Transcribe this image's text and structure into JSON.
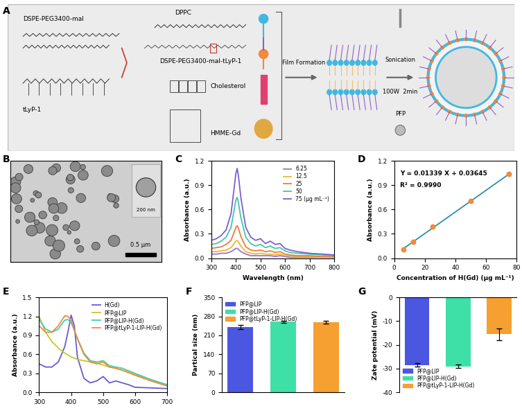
{
  "diagram": {
    "panel": "A",
    "labels": {
      "peg_mal": "DSPE-PEG3400-mal",
      "peptide": "tLyP-1",
      "dppc": "DPPC",
      "conjugate": "DSPE-PEG3400-mal-tLyP-1",
      "cholesterol": "Cholesterol",
      "hmme": "HMME-Gd",
      "step1": "Film Formation",
      "step2": "Sonication",
      "step2_conditions": "100W  2min",
      "gas": "PFP"
    }
  },
  "image": {
    "panel": "B",
    "scale_bar": "0.5 μm",
    "inset_scale_bar": "200 nm"
  },
  "chart_data": [
    {
      "panel": "C",
      "type": "line",
      "xlabel": "Wavelength (nm)",
      "ylabel": "Absorbance (a.u.)",
      "x": [
        300,
        320,
        340,
        360,
        380,
        390,
        400,
        405,
        410,
        420,
        440,
        460,
        480,
        500,
        520,
        540,
        560,
        580,
        600,
        620,
        650,
        700,
        750,
        800
      ],
      "xlim": [
        300,
        800
      ],
      "xticks": [
        300,
        400,
        500,
        600,
        700,
        800
      ],
      "ylim": [
        0.0,
        1.2
      ],
      "yticks": [
        0.0,
        0.3,
        0.6,
        0.9,
        1.2
      ],
      "legend": "upper right",
      "series": [
        {
          "name": "6.25",
          "color": "#9b72d8",
          "values": [
            0.05,
            0.05,
            0.06,
            0.06,
            0.08,
            0.1,
            0.12,
            0.12,
            0.11,
            0.08,
            0.05,
            0.03,
            0.03,
            0.03,
            0.03,
            0.03,
            0.02,
            0.03,
            0.02,
            0.01,
            0.01,
            0.01,
            0.01,
            0.01
          ]
        },
        {
          "name": "12.5",
          "color": "#e8b830",
          "values": [
            0.08,
            0.08,
            0.09,
            0.1,
            0.13,
            0.17,
            0.21,
            0.22,
            0.2,
            0.15,
            0.08,
            0.06,
            0.05,
            0.06,
            0.05,
            0.05,
            0.04,
            0.05,
            0.03,
            0.03,
            0.02,
            0.02,
            0.01,
            0.01
          ]
        },
        {
          "name": "25",
          "color": "#f07a3c",
          "values": [
            0.12,
            0.13,
            0.14,
            0.17,
            0.22,
            0.3,
            0.38,
            0.4,
            0.37,
            0.27,
            0.14,
            0.1,
            0.09,
            0.1,
            0.08,
            0.09,
            0.07,
            0.08,
            0.05,
            0.04,
            0.03,
            0.03,
            0.02,
            0.02
          ]
        },
        {
          "name": "50",
          "color": "#3ec9a7",
          "values": [
            0.17,
            0.18,
            0.21,
            0.26,
            0.38,
            0.55,
            0.72,
            0.75,
            0.69,
            0.5,
            0.26,
            0.18,
            0.15,
            0.17,
            0.13,
            0.15,
            0.12,
            0.13,
            0.09,
            0.07,
            0.06,
            0.05,
            0.04,
            0.03
          ]
        },
        {
          "name": "75 (μg mL⁻¹)",
          "color": "#7a5fd0",
          "values": [
            0.22,
            0.24,
            0.28,
            0.35,
            0.55,
            0.8,
            1.05,
            1.11,
            1.02,
            0.75,
            0.38,
            0.26,
            0.22,
            0.24,
            0.18,
            0.21,
            0.17,
            0.18,
            0.12,
            0.1,
            0.08,
            0.06,
            0.05,
            0.04
          ]
        }
      ]
    },
    {
      "panel": "D",
      "type": "scatter",
      "xlabel": "Concentration of H(Gd) (μg mL⁻¹)",
      "ylabel": "Absorbance (a.u.)",
      "xlim": [
        0,
        80
      ],
      "xticks": [
        0,
        20,
        40,
        60,
        80
      ],
      "ylim": [
        0.0,
        1.2
      ],
      "yticks": [
        0.0,
        0.3,
        0.6,
        0.9,
        1.2
      ],
      "annotations": [
        "Y = 0.01339 X + 0.03645",
        "R² = 0.9990"
      ],
      "series": [
        {
          "type": "line",
          "color": "#2a8fa8",
          "line_style": "solid",
          "x": [
            6.25,
            75
          ],
          "values": [
            0.12,
            1.04
          ]
        },
        {
          "type": "scatter",
          "color": "#f08a3c",
          "marker": "circle",
          "x": [
            6.25,
            12.5,
            25,
            50,
            75
          ],
          "values": [
            0.11,
            0.2,
            0.39,
            0.71,
            1.04
          ]
        }
      ]
    },
    {
      "panel": "E",
      "type": "line",
      "ylabel": "Absorbance (a.u.)",
      "x": [
        300,
        320,
        340,
        360,
        380,
        390,
        400,
        410,
        420,
        440,
        460,
        480,
        500,
        520,
        540,
        560,
        580,
        600,
        650,
        700
      ],
      "xlim": [
        300,
        700
      ],
      "xticks": [
        300,
        400,
        500,
        600,
        700
      ],
      "ylim": [
        0.0,
        1.5
      ],
      "yticks": [
        0.0,
        0.3,
        0.6,
        0.9,
        1.2,
        1.5
      ],
      "legend": "upper right",
      "series": [
        {
          "name": "H(Gd)",
          "color": "#6a5ad0",
          "values": [
            0.45,
            0.4,
            0.4,
            0.48,
            0.72,
            0.95,
            1.22,
            1.05,
            0.55,
            0.22,
            0.15,
            0.18,
            0.25,
            0.15,
            0.18,
            0.15,
            0.12,
            0.08,
            0.07,
            0.06
          ]
        },
        {
          "name": "PFP@LIP",
          "color": "#c9c62a",
          "values": [
            1.2,
            0.95,
            0.8,
            0.7,
            0.62,
            0.59,
            0.56,
            0.54,
            0.52,
            0.5,
            0.48,
            0.46,
            0.43,
            0.4,
            0.38,
            0.35,
            0.32,
            0.28,
            0.2,
            0.12
          ]
        },
        {
          "name": "PFP@LIP-H(Gd)",
          "color": "#40d0b0",
          "values": [
            1.15,
            1.0,
            0.95,
            1.0,
            1.14,
            1.15,
            1.1,
            0.98,
            0.85,
            0.62,
            0.5,
            0.48,
            0.5,
            0.42,
            0.4,
            0.38,
            0.34,
            0.3,
            0.2,
            0.12
          ]
        },
        {
          "name": "PFP@tLyP-1-LIP-H(Gd)",
          "color": "#f08a3c",
          "values": [
            1.05,
            0.95,
            0.95,
            1.05,
            1.21,
            1.2,
            1.14,
            0.98,
            0.84,
            0.6,
            0.48,
            0.45,
            0.48,
            0.4,
            0.38,
            0.35,
            0.31,
            0.27,
            0.18,
            0.1
          ]
        }
      ]
    },
    {
      "panel": "F",
      "type": "bar",
      "ylabel": "Partical size (nm)",
      "categories": [
        "PFP@LIP",
        "PFP@LIP-H(Gd)",
        "PFP@tLyP-1-LIP-H(Gd)"
      ],
      "values": [
        240,
        260,
        258
      ],
      "errors": [
        8,
        3,
        5
      ],
      "colors": [
        "#4b57e0",
        "#3ee0a8",
        "#f5a030"
      ],
      "ylim": [
        0,
        350
      ],
      "yticks": [
        0,
        70,
        140,
        210,
        280,
        350
      ],
      "legend": "upper left",
      "tick_labels": "y"
    },
    {
      "panel": "G",
      "type": "bar",
      "ylabel": "Zate potential (mV)",
      "categories": [
        "PFP@LIP",
        "PFP@LIP-H(Gd)",
        "PFP@tLyP-1-LIP-H(Gd)"
      ],
      "values": [
        -28.5,
        -29,
        -15.5
      ],
      "errors": [
        0.7,
        0.8,
        2.5
      ],
      "colors": [
        "#4b57e0",
        "#3ee0a8",
        "#f5a030"
      ],
      "ylim": [
        -40,
        0
      ],
      "yticks": [
        -40,
        -30,
        -20,
        -10,
        0
      ],
      "legend": "lower left",
      "tick_labels": "y"
    }
  ]
}
